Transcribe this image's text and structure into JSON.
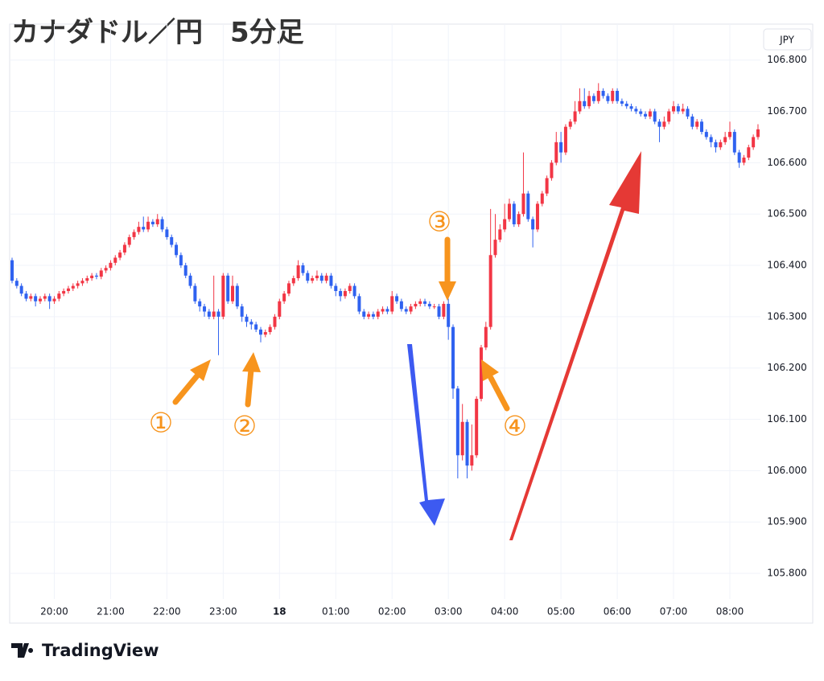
{
  "chart_data": {
    "type": "candlestick",
    "title": "カナダドル／円　5分足",
    "currency": "JPY",
    "branding": "TradingView",
    "up_color": "#f23645",
    "down_color": "#2f62f0",
    "grid": true,
    "ylim": [
      105.75,
      106.87
    ],
    "yticks": [
      {
        "value": 105.8,
        "label": "105.800"
      },
      {
        "value": 105.9,
        "label": "105.900"
      },
      {
        "value": 106.0,
        "label": "106.000"
      },
      {
        "value": 106.1,
        "label": "106.100"
      },
      {
        "value": 106.2,
        "label": "106.200"
      },
      {
        "value": 106.3,
        "label": "106.300"
      },
      {
        "value": 106.4,
        "label": "106.400"
      },
      {
        "value": 106.5,
        "label": "106.500"
      },
      {
        "value": 106.6,
        "label": "106.600"
      },
      {
        "value": 106.7,
        "label": "106.700"
      },
      {
        "value": 106.8,
        "label": "106.800"
      }
    ],
    "annotations": [
      "①",
      "②",
      "③",
      "④"
    ],
    "categories": [
      null,
      null,
      null,
      null,
      null,
      null,
      null,
      null,
      null,
      "20:00",
      null,
      null,
      null,
      null,
      null,
      null,
      null,
      null,
      null,
      null,
      null,
      "21:00",
      null,
      null,
      null,
      null,
      null,
      null,
      null,
      null,
      null,
      null,
      null,
      "22:00",
      null,
      null,
      null,
      null,
      null,
      null,
      null,
      null,
      null,
      null,
      null,
      "23:00",
      null,
      null,
      null,
      null,
      null,
      null,
      null,
      null,
      null,
      null,
      null,
      "18",
      null,
      null,
      null,
      null,
      null,
      null,
      null,
      null,
      null,
      null,
      null,
      "01:00",
      null,
      null,
      null,
      null,
      null,
      null,
      null,
      null,
      null,
      null,
      null,
      "02:00",
      null,
      null,
      null,
      null,
      null,
      null,
      null,
      null,
      null,
      null,
      null,
      "03:00",
      null,
      null,
      null,
      null,
      null,
      null,
      null,
      null,
      null,
      null,
      null,
      "04:00",
      null,
      null,
      null,
      null,
      null,
      null,
      null,
      null,
      null,
      null,
      null,
      "05:00",
      null,
      null,
      null,
      null,
      null,
      null,
      null,
      null,
      null,
      null,
      null,
      "06:00",
      null,
      null,
      null,
      null,
      null,
      null,
      null,
      null,
      null,
      null,
      null,
      "07:00",
      null,
      null,
      null,
      null,
      null,
      null,
      null,
      null,
      null,
      null,
      null,
      "08:00",
      null,
      null,
      null,
      null,
      null,
      null
    ],
    "candles": [
      [
        106.41,
        106.415,
        106.365,
        106.37
      ],
      [
        106.37,
        106.375,
        106.355,
        106.36
      ],
      [
        106.36,
        106.365,
        106.34,
        106.345
      ],
      [
        106.345,
        106.35,
        106.33,
        106.335
      ],
      [
        106.335,
        106.345,
        106.33,
        106.34
      ],
      [
        106.34,
        106.345,
        106.32,
        106.33
      ],
      [
        106.33,
        106.34,
        106.325,
        106.335
      ],
      [
        106.335,
        106.345,
        106.33,
        106.34
      ],
      [
        106.34,
        106.345,
        106.315,
        106.33
      ],
      [
        106.33,
        106.34,
        106.325,
        106.335
      ],
      [
        106.335,
        106.35,
        106.33,
        106.345
      ],
      [
        106.345,
        106.355,
        106.34,
        106.35
      ],
      [
        106.35,
        106.36,
        106.345,
        106.355
      ],
      [
        106.355,
        106.365,
        106.35,
        106.36
      ],
      [
        106.36,
        106.37,
        106.355,
        106.365
      ],
      [
        106.365,
        106.375,
        106.36,
        106.37
      ],
      [
        106.37,
        106.38,
        106.365,
        106.375
      ],
      [
        106.375,
        106.385,
        106.37,
        106.38
      ],
      [
        106.38,
        106.385,
        106.373,
        106.378
      ],
      [
        106.378,
        106.395,
        106.373,
        106.39
      ],
      [
        106.39,
        106.4,
        106.385,
        106.395
      ],
      [
        106.395,
        106.41,
        106.39,
        106.405
      ],
      [
        106.405,
        106.42,
        106.4,
        106.415
      ],
      [
        106.415,
        106.43,
        106.41,
        106.425
      ],
      [
        106.425,
        106.445,
        106.42,
        106.44
      ],
      [
        106.44,
        106.46,
        106.435,
        106.455
      ],
      [
        106.455,
        106.47,
        106.45,
        106.465
      ],
      [
        106.465,
        106.485,
        106.46,
        106.475
      ],
      [
        106.475,
        106.495,
        106.465,
        106.47
      ],
      [
        106.47,
        106.495,
        106.465,
        106.485
      ],
      [
        106.485,
        106.49,
        106.475,
        106.48
      ],
      [
        106.48,
        106.5,
        106.475,
        106.49
      ],
      [
        106.49,
        106.495,
        106.465,
        106.47
      ],
      [
        106.47,
        106.475,
        106.45,
        106.455
      ],
      [
        106.455,
        106.46,
        106.435,
        106.44
      ],
      [
        106.44,
        106.445,
        106.415,
        106.42
      ],
      [
        106.42,
        106.425,
        106.395,
        106.4
      ],
      [
        106.4,
        106.405,
        106.375,
        106.38
      ],
      [
        106.38,
        106.385,
        106.355,
        106.36
      ],
      [
        106.36,
        106.365,
        106.325,
        106.33
      ],
      [
        106.33,
        106.335,
        106.31,
        106.32
      ],
      [
        106.32,
        106.325,
        106.3,
        106.31
      ],
      [
        106.31,
        106.315,
        106.295,
        106.3
      ],
      [
        106.3,
        106.38,
        106.295,
        106.31
      ],
      [
        106.31,
        106.315,
        106.225,
        106.3
      ],
      [
        106.3,
        106.385,
        106.295,
        106.38
      ],
      [
        106.38,
        106.385,
        106.325,
        106.33
      ],
      [
        106.33,
        106.38,
        106.325,
        106.36
      ],
      [
        106.36,
        106.365,
        106.315,
        106.32
      ],
      [
        106.32,
        106.325,
        106.29,
        106.3
      ],
      [
        106.3,
        106.305,
        106.28,
        106.29
      ],
      [
        106.29,
        106.295,
        106.275,
        106.285
      ],
      [
        106.285,
        106.29,
        106.27,
        106.275
      ],
      [
        106.275,
        106.28,
        106.25,
        106.265
      ],
      [
        106.265,
        106.275,
        106.26,
        106.27
      ],
      [
        106.27,
        106.285,
        106.265,
        106.28
      ],
      [
        106.28,
        106.305,
        106.275,
        106.3
      ],
      [
        106.3,
        106.335,
        106.295,
        106.33
      ],
      [
        106.33,
        106.35,
        106.325,
        106.345
      ],
      [
        106.345,
        106.37,
        106.34,
        106.365
      ],
      [
        106.365,
        106.38,
        106.36,
        106.375
      ],
      [
        106.375,
        106.41,
        106.37,
        106.4
      ],
      [
        106.4,
        106.405,
        106.38,
        106.385
      ],
      [
        106.385,
        106.39,
        106.365,
        106.37
      ],
      [
        106.37,
        106.38,
        106.365,
        106.375
      ],
      [
        106.375,
        106.39,
        106.37,
        106.38
      ],
      [
        106.38,
        106.385,
        106.365,
        106.37
      ],
      [
        106.37,
        106.385,
        106.365,
        106.38
      ],
      [
        106.38,
        106.385,
        106.355,
        106.36
      ],
      [
        106.36,
        106.365,
        106.34,
        106.35
      ],
      [
        106.35,
        106.355,
        106.33,
        106.34
      ],
      [
        106.34,
        106.355,
        106.335,
        106.35
      ],
      [
        106.35,
        106.365,
        106.345,
        106.36
      ],
      [
        106.36,
        106.365,
        106.335,
        106.34
      ],
      [
        106.34,
        106.345,
        106.305,
        106.31
      ],
      [
        106.31,
        106.315,
        106.295,
        106.3
      ],
      [
        106.3,
        106.31,
        106.295,
        106.305
      ],
      [
        106.305,
        106.31,
        106.295,
        106.3
      ],
      [
        106.3,
        106.315,
        106.295,
        106.31
      ],
      [
        106.31,
        106.32,
        106.305,
        106.315
      ],
      [
        106.315,
        106.32,
        106.305,
        106.31
      ],
      [
        106.31,
        106.35,
        106.305,
        106.34
      ],
      [
        106.34,
        106.345,
        106.325,
        106.33
      ],
      [
        106.33,
        106.335,
        106.31,
        106.315
      ],
      [
        106.315,
        106.32,
        106.305,
        106.31
      ],
      [
        106.31,
        106.325,
        106.305,
        106.32
      ],
      [
        106.32,
        106.33,
        106.315,
        106.325
      ],
      [
        106.325,
        106.335,
        106.32,
        106.33
      ],
      [
        106.33,
        106.335,
        106.32,
        106.325
      ],
      [
        106.325,
        106.33,
        106.315,
        106.32
      ],
      [
        106.32,
        106.325,
        106.315,
        106.32
      ],
      [
        106.32,
        106.325,
        106.295,
        106.3
      ],
      [
        106.3,
        106.33,
        106.295,
        106.325
      ],
      [
        106.325,
        106.335,
        106.255,
        106.28
      ],
      [
        106.28,
        106.285,
        106.14,
        106.16
      ],
      [
        106.16,
        106.165,
        105.985,
        106.03
      ],
      [
        106.03,
        106.13,
        106.02,
        106.095
      ],
      [
        106.095,
        106.1,
        105.985,
        106.01
      ],
      [
        106.01,
        106.09,
        106.0,
        106.03
      ],
      [
        106.03,
        106.145,
        106.025,
        106.14
      ],
      [
        106.14,
        106.245,
        106.135,
        106.24
      ],
      [
        106.24,
        106.29,
        106.235,
        106.28
      ],
      [
        106.28,
        106.51,
        106.275,
        106.42
      ],
      [
        106.42,
        106.5,
        106.415,
        106.45
      ],
      [
        106.45,
        106.48,
        106.445,
        106.47
      ],
      [
        106.47,
        106.52,
        106.465,
        106.49
      ],
      [
        106.49,
        106.53,
        106.485,
        106.52
      ],
      [
        106.52,
        106.525,
        106.475,
        106.48
      ],
      [
        106.48,
        106.505,
        106.475,
        106.5
      ],
      [
        106.5,
        106.62,
        106.495,
        106.54
      ],
      [
        106.54,
        106.545,
        106.485,
        106.49
      ],
      [
        106.49,
        106.495,
        106.435,
        106.47
      ],
      [
        106.47,
        106.525,
        106.465,
        106.52
      ],
      [
        106.52,
        106.545,
        106.515,
        106.54
      ],
      [
        106.54,
        106.575,
        106.535,
        106.57
      ],
      [
        106.57,
        106.605,
        106.565,
        106.6
      ],
      [
        106.6,
        106.66,
        106.595,
        106.64
      ],
      [
        106.64,
        106.66,
        106.6,
        106.62
      ],
      [
        106.62,
        106.675,
        106.615,
        106.67
      ],
      [
        106.67,
        106.685,
        106.665,
        106.68
      ],
      [
        106.68,
        106.72,
        106.675,
        106.7
      ],
      [
        106.7,
        106.745,
        106.695,
        106.72
      ],
      [
        106.72,
        106.745,
        106.705,
        106.71
      ],
      [
        106.71,
        106.74,
        106.705,
        106.73
      ],
      [
        106.73,
        106.735,
        106.715,
        106.72
      ],
      [
        106.72,
        106.755,
        106.715,
        106.74
      ],
      [
        106.74,
        106.745,
        106.725,
        106.73
      ],
      [
        106.73,
        106.735,
        106.715,
        106.72
      ],
      [
        106.72,
        106.745,
        106.715,
        106.74
      ],
      [
        106.74,
        106.745,
        106.715,
        106.72
      ],
      [
        106.72,
        106.725,
        106.71,
        106.715
      ],
      [
        106.715,
        106.72,
        106.705,
        106.71
      ],
      [
        106.71,
        106.715,
        106.7,
        106.705
      ],
      [
        106.705,
        106.71,
        106.695,
        106.7
      ],
      [
        106.7,
        106.705,
        106.69,
        106.695
      ],
      [
        106.695,
        106.7,
        106.685,
        106.69
      ],
      [
        106.69,
        106.705,
        106.685,
        106.7
      ],
      [
        106.7,
        106.705,
        106.675,
        106.68
      ],
      [
        106.68,
        106.685,
        106.64,
        106.67
      ],
      [
        106.67,
        106.69,
        106.665,
        106.68
      ],
      [
        106.68,
        106.705,
        106.675,
        106.7
      ],
      [
        106.7,
        106.72,
        106.695,
        106.71
      ],
      [
        106.71,
        106.715,
        106.695,
        106.7
      ],
      [
        106.7,
        106.715,
        106.695,
        106.705
      ],
      [
        106.705,
        106.71,
        106.685,
        106.69
      ],
      [
        106.69,
        106.695,
        106.665,
        106.67
      ],
      [
        106.67,
        106.685,
        106.665,
        106.68
      ],
      [
        106.68,
        106.685,
        106.655,
        106.66
      ],
      [
        106.66,
        106.665,
        106.645,
        106.65
      ],
      [
        106.65,
        106.655,
        106.63,
        106.64
      ],
      [
        106.64,
        106.645,
        106.62,
        106.63
      ],
      [
        106.63,
        106.645,
        106.625,
        106.64
      ],
      [
        106.64,
        106.66,
        106.635,
        106.65
      ],
      [
        106.65,
        106.68,
        106.645,
        106.66
      ],
      [
        106.66,
        106.665,
        106.615,
        106.62
      ],
      [
        106.62,
        106.625,
        106.59,
        106.6
      ],
      [
        106.6,
        106.615,
        106.595,
        106.61
      ],
      [
        106.61,
        106.635,
        106.605,
        106.63
      ],
      [
        106.63,
        106.655,
        106.625,
        106.65
      ],
      [
        106.65,
        106.675,
        106.645,
        106.665
      ]
    ]
  }
}
